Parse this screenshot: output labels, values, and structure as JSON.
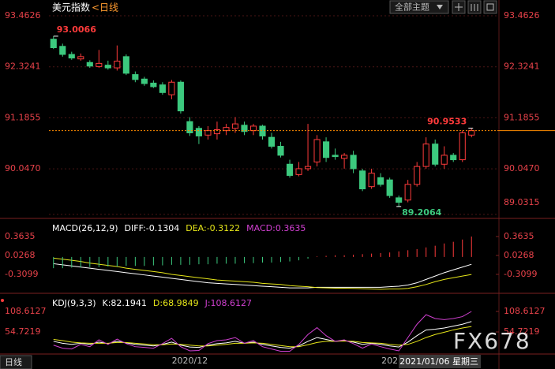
{
  "header": {
    "theme_button": "全部主题"
  },
  "footer": {
    "period": "日线"
  },
  "watermark": "FX678",
  "chart_data": [
    {
      "type": "candlestick",
      "title": "美元指数",
      "period": "<日线",
      "categories": [
        null,
        null,
        null,
        null,
        null,
        null,
        null,
        null,
        null,
        null,
        null,
        null,
        null,
        null,
        null,
        "2020/12",
        null,
        null,
        null,
        null,
        null,
        null,
        null,
        null,
        null,
        null,
        null,
        null,
        null,
        null,
        null,
        null,
        null,
        null,
        null,
        null,
        null,
        "202",
        null,
        null,
        null,
        null,
        null,
        null,
        null,
        null,
        null
      ],
      "cursor_label": "2021/01/06 星期三",
      "open": [
        92.94,
        92.78,
        92.6,
        92.5,
        92.42,
        92.33,
        92.36,
        92.3,
        92.55,
        92.15,
        92.05,
        91.96,
        91.92,
        91.7,
        91.98,
        91.1,
        90.95,
        90.8,
        90.83,
        90.9,
        90.95,
        91.02,
        90.9,
        91.0,
        90.75,
        90.55,
        90.15,
        89.92,
        90.05,
        90.2,
        90.65,
        90.35,
        90.28,
        90.35,
        90.0,
        89.65,
        89.85,
        89.8,
        89.4,
        89.35,
        89.7,
        90.1,
        90.6,
        90.15,
        90.35,
        90.25,
        90.8
      ],
      "high": [
        93.0066,
        92.84,
        92.66,
        92.62,
        92.47,
        92.7,
        92.46,
        92.8,
        92.6,
        92.22,
        92.1,
        92.02,
        91.98,
        92.03,
        92.02,
        91.2,
        91.0,
        91.0,
        91.1,
        91.05,
        91.2,
        91.1,
        91.05,
        91.03,
        90.85,
        90.65,
        90.25,
        90.2,
        91.05,
        90.8,
        90.75,
        90.5,
        90.4,
        90.45,
        90.05,
        90.05,
        89.95,
        89.85,
        89.45,
        89.8,
        90.2,
        90.75,
        90.7,
        90.55,
        90.4,
        90.9,
        90.9533
      ],
      "low": [
        92.72,
        92.55,
        92.48,
        92.46,
        92.3,
        92.3,
        92.26,
        92.24,
        92.14,
        91.98,
        91.9,
        91.85,
        91.7,
        91.6,
        91.28,
        90.78,
        90.6,
        90.7,
        90.7,
        90.8,
        90.85,
        90.8,
        90.8,
        90.7,
        90.5,
        90.3,
        89.85,
        89.88,
        90.0,
        90.1,
        90.2,
        90.25,
        90.05,
        89.95,
        89.55,
        89.6,
        89.65,
        89.4,
        89.2064,
        89.3,
        89.65,
        90.05,
        90.1,
        90.05,
        90.2,
        90.2,
        90.75
      ],
      "close": [
        92.75,
        92.6,
        92.52,
        92.55,
        92.34,
        92.4,
        92.3,
        92.45,
        92.18,
        92.04,
        91.95,
        91.88,
        91.75,
        91.98,
        91.34,
        90.85,
        90.78,
        90.9,
        90.92,
        90.97,
        91.05,
        90.88,
        91.0,
        90.78,
        90.55,
        90.35,
        89.9,
        90.05,
        90.1,
        90.7,
        90.3,
        90.32,
        90.35,
        90.05,
        89.6,
        89.95,
        89.7,
        89.45,
        89.3,
        89.7,
        90.1,
        90.6,
        90.15,
        90.35,
        90.25,
        90.85,
        90.9
      ],
      "up_color": "#ff3b3b",
      "down_color": "#3cc97e",
      "last_line_color": "#ff8c00",
      "ylim": [
        88.976,
        93.603
      ],
      "yticks": [
        93.4626,
        92.3241,
        91.1855,
        {
          "value": 90.047,
          "label": "90.0470"
        },
        89.0315
      ],
      "grid": true
    },
    {
      "type": "macd",
      "title": "MACD(26,12,9)",
      "up_color": "#ff3b3b",
      "down_color": "#3cc97e",
      "series": [
        {
          "name": "DIFF:-0.1304",
          "color": "#ffffff",
          "values": [
            -0.12,
            -0.14,
            -0.16,
            -0.18,
            -0.2,
            -0.22,
            -0.24,
            -0.26,
            -0.28,
            -0.3,
            -0.32,
            -0.34,
            -0.36,
            -0.38,
            -0.4,
            -0.42,
            -0.44,
            -0.46,
            -0.47,
            -0.48,
            -0.49,
            -0.5,
            -0.51,
            -0.52,
            -0.53,
            -0.54,
            -0.55,
            -0.55,
            -0.55,
            -0.54,
            -0.54,
            -0.54,
            -0.54,
            -0.54,
            -0.54,
            -0.54,
            -0.54,
            -0.53,
            -0.52,
            -0.5,
            -0.46,
            -0.4,
            -0.34,
            -0.28,
            -0.23,
            -0.18,
            -0.1304
          ]
        },
        {
          "name": "DEA:-0.3122",
          "color": "#e6e619",
          "values": [
            -0.02,
            -0.04,
            -0.06,
            -0.08,
            -0.11,
            -0.13,
            -0.15,
            -0.17,
            -0.2,
            -0.22,
            -0.24,
            -0.26,
            -0.28,
            -0.31,
            -0.33,
            -0.35,
            -0.37,
            -0.39,
            -0.41,
            -0.42,
            -0.43,
            -0.44,
            -0.45,
            -0.47,
            -0.48,
            -0.49,
            -0.51,
            -0.52,
            -0.53,
            -0.545,
            -0.55,
            -0.555,
            -0.555,
            -0.56,
            -0.565,
            -0.57,
            -0.575,
            -0.57,
            -0.57,
            -0.56,
            -0.53,
            -0.49,
            -0.44,
            -0.4,
            -0.37,
            -0.34,
            -0.3122
          ]
        },
        {
          "name": "MACD:0.3635",
          "color": "#d040d0",
          "bars": true,
          "values": [
            -0.2,
            -0.2,
            -0.19,
            -0.19,
            -0.18,
            -0.18,
            -0.17,
            -0.17,
            -0.16,
            -0.16,
            -0.16,
            -0.15,
            -0.15,
            -0.14,
            -0.14,
            -0.14,
            -0.13,
            -0.13,
            -0.12,
            -0.12,
            -0.12,
            -0.11,
            -0.11,
            -0.1,
            -0.1,
            -0.09,
            -0.08,
            -0.06,
            -0.03,
            0.01,
            0.02,
            0.03,
            0.03,
            0.04,
            0.05,
            0.06,
            0.07,
            0.08,
            0.1,
            0.12,
            0.14,
            0.17,
            0.2,
            0.24,
            0.27,
            0.31,
            0.3635
          ]
        }
      ],
      "ylim": [
        -0.619,
        0.644
      ],
      "yticks": [
        0.3635,
        0.0268,
        -0.3099
      ]
    },
    {
      "type": "line",
      "title": "KDJ(9,3,3)",
      "series": [
        {
          "name": "K:82.1941",
          "color": "#ffffff",
          "values": [
            30,
            25,
            22,
            25,
            22,
            28,
            24,
            30,
            26,
            22,
            20,
            18,
            22,
            28,
            20,
            15,
            14,
            20,
            24,
            26,
            30,
            25,
            28,
            22,
            18,
            14,
            12,
            18,
            30,
            40,
            35,
            30,
            32,
            28,
            22,
            25,
            22,
            18,
            15,
            28,
            45,
            60,
            62,
            65,
            70,
            75,
            82.1941
          ]
        },
        {
          "name": "D:68.9849",
          "color": "#e6e619",
          "values": [
            35,
            32,
            28,
            26,
            25,
            25,
            25,
            27,
            27,
            25,
            23,
            21,
            21,
            23,
            22,
            20,
            18,
            18,
            20,
            22,
            25,
            25,
            26,
            25,
            22,
            19,
            16,
            16,
            21,
            27,
            30,
            30,
            31,
            30,
            27,
            26,
            25,
            22,
            20,
            22,
            30,
            40,
            48,
            54,
            60,
            65,
            68.9849
          ]
        },
        {
          "name": "J:108.6127",
          "color": "#d040d0",
          "values": [
            20,
            12,
            10,
            22,
            16,
            34,
            22,
            36,
            24,
            16,
            14,
            12,
            24,
            38,
            16,
            5,
            6,
            24,
            32,
            34,
            40,
            25,
            32,
            16,
            10,
            4,
            4,
            22,
            48,
            66,
            45,
            30,
            34,
            24,
            12,
            23,
            16,
            10,
            5,
            40,
            75,
            100,
            90,
            87,
            90,
            95,
            108.6127
          ]
        }
      ],
      "ylim": [
        0.84,
        150.06
      ],
      "yticks": [
        108.6127,
        54.7219
      ]
    }
  ]
}
